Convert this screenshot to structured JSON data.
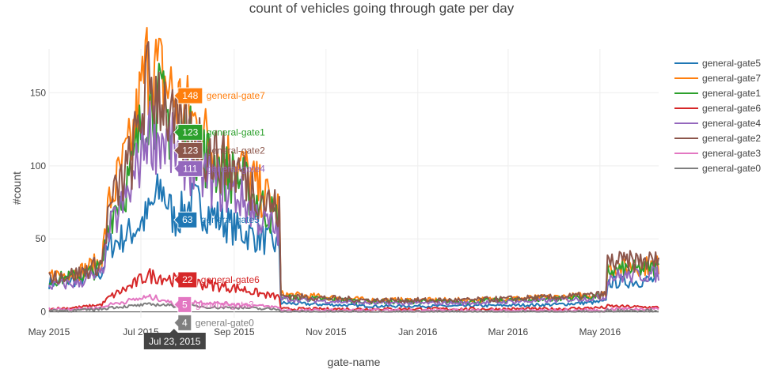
{
  "chart_data": {
    "type": "line",
    "title": "count of vehicles going through gate per day",
    "xlabel": "gate-name",
    "ylabel": "#count",
    "x_tick_labels": [
      "May 2015",
      "Jul 2015",
      "Sep 2015",
      "Nov 2015",
      "Jan 2016",
      "Mar 2016",
      "May 2016"
    ],
    "y_ticks": [
      0,
      50,
      100,
      150
    ],
    "ylim": [
      -4,
      180
    ],
    "xlim": [
      "2015-05-01",
      "2016-06-09"
    ],
    "grid": true,
    "legend_position": "right",
    "hover": {
      "date": "2015-07-23",
      "date_label": "Jul 23, 2015"
    },
    "series": [
      {
        "name": "general-gate5",
        "color": "#1f77b4",
        "hover_value": 63,
        "points": [
          [
            "2015-05-01",
            20
          ],
          [
            "2015-05-20",
            22
          ],
          [
            "2015-06-05",
            27
          ],
          [
            "2015-06-10",
            45
          ],
          [
            "2015-06-25",
            55
          ],
          [
            "2015-07-05",
            65
          ],
          [
            "2015-07-15",
            85
          ],
          [
            "2015-07-23",
            63
          ],
          [
            "2015-08-05",
            75
          ],
          [
            "2015-08-20",
            65
          ],
          [
            "2015-09-05",
            55
          ],
          [
            "2015-09-20",
            50
          ],
          [
            "2015-10-01",
            45
          ],
          [
            "2015-10-02",
            6
          ],
          [
            "2015-12-01",
            4
          ],
          [
            "2016-02-01",
            4
          ],
          [
            "2016-04-01",
            5
          ],
          [
            "2016-05-05",
            7
          ],
          [
            "2016-05-06",
            20
          ],
          [
            "2016-06-09",
            22
          ]
        ]
      },
      {
        "name": "general-gate7",
        "color": "#ff7f0e",
        "hover_value": 148,
        "points": [
          [
            "2015-05-01",
            25
          ],
          [
            "2015-05-20",
            27
          ],
          [
            "2015-06-05",
            35
          ],
          [
            "2015-06-10",
            75
          ],
          [
            "2015-06-25",
            115
          ],
          [
            "2015-07-05",
            170
          ],
          [
            "2015-07-15",
            160
          ],
          [
            "2015-07-23",
            148
          ],
          [
            "2015-08-05",
            130
          ],
          [
            "2015-08-20",
            110
          ],
          [
            "2015-09-05",
            100
          ],
          [
            "2015-09-20",
            80
          ],
          [
            "2015-10-01",
            70
          ],
          [
            "2015-10-02",
            12
          ],
          [
            "2015-12-01",
            8
          ],
          [
            "2016-02-01",
            8
          ],
          [
            "2016-04-01",
            10
          ],
          [
            "2016-05-05",
            12
          ],
          [
            "2016-05-06",
            30
          ],
          [
            "2016-06-09",
            32
          ]
        ]
      },
      {
        "name": "general-gate1",
        "color": "#2ca02c",
        "hover_value": 123,
        "points": [
          [
            "2015-05-01",
            22
          ],
          [
            "2015-05-20",
            24
          ],
          [
            "2015-06-05",
            30
          ],
          [
            "2015-06-10",
            65
          ],
          [
            "2015-06-25",
            95
          ],
          [
            "2015-07-05",
            145
          ],
          [
            "2015-07-15",
            140
          ],
          [
            "2015-07-23",
            123
          ],
          [
            "2015-08-05",
            115
          ],
          [
            "2015-08-20",
            100
          ],
          [
            "2015-09-05",
            90
          ],
          [
            "2015-09-20",
            72
          ],
          [
            "2015-10-01",
            62
          ],
          [
            "2015-10-02",
            10
          ],
          [
            "2015-12-01",
            7
          ],
          [
            "2016-02-01",
            7
          ],
          [
            "2016-04-01",
            9
          ],
          [
            "2016-05-05",
            11
          ],
          [
            "2016-05-06",
            28
          ],
          [
            "2016-06-09",
            30
          ]
        ]
      },
      {
        "name": "general-gate6",
        "color": "#d62728",
        "hover_value": 22,
        "points": [
          [
            "2015-05-01",
            2
          ],
          [
            "2015-05-20",
            3
          ],
          [
            "2015-06-05",
            5
          ],
          [
            "2015-06-10",
            10
          ],
          [
            "2015-06-25",
            18
          ],
          [
            "2015-07-05",
            25
          ],
          [
            "2015-07-15",
            24
          ],
          [
            "2015-07-23",
            22
          ],
          [
            "2015-08-05",
            20
          ],
          [
            "2015-08-20",
            18
          ],
          [
            "2015-09-05",
            16
          ],
          [
            "2015-09-20",
            12
          ],
          [
            "2015-10-01",
            10
          ],
          [
            "2015-10-02",
            2
          ],
          [
            "2015-12-01",
            2
          ],
          [
            "2016-02-01",
            2
          ],
          [
            "2016-04-01",
            2
          ],
          [
            "2016-05-05",
            3
          ],
          [
            "2016-05-06",
            4
          ],
          [
            "2016-06-09",
            3
          ]
        ]
      },
      {
        "name": "general-gate4",
        "color": "#9467bd",
        "hover_value": 111,
        "points": [
          [
            "2015-05-01",
            18
          ],
          [
            "2015-05-20",
            20
          ],
          [
            "2015-06-05",
            26
          ],
          [
            "2015-06-10",
            55
          ],
          [
            "2015-06-25",
            85
          ],
          [
            "2015-07-05",
            125
          ],
          [
            "2015-07-15",
            118
          ],
          [
            "2015-07-23",
            111
          ],
          [
            "2015-08-05",
            100
          ],
          [
            "2015-08-20",
            88
          ],
          [
            "2015-09-05",
            78
          ],
          [
            "2015-09-20",
            62
          ],
          [
            "2015-10-01",
            55
          ],
          [
            "2015-10-02",
            9
          ],
          [
            "2015-12-01",
            6
          ],
          [
            "2016-02-01",
            6
          ],
          [
            "2016-04-01",
            8
          ],
          [
            "2016-05-05",
            10
          ],
          [
            "2016-05-06",
            24
          ],
          [
            "2016-06-09",
            26
          ]
        ]
      },
      {
        "name": "general-gate2",
        "color": "#8c564b",
        "hover_value": 123,
        "points": [
          [
            "2015-05-01",
            24
          ],
          [
            "2015-05-20",
            26
          ],
          [
            "2015-06-05",
            33
          ],
          [
            "2015-06-10",
            70
          ],
          [
            "2015-06-25",
            105
          ],
          [
            "2015-07-05",
            155
          ],
          [
            "2015-07-15",
            150
          ],
          [
            "2015-07-23",
            123
          ],
          [
            "2015-08-05",
            120
          ],
          [
            "2015-08-20",
            105
          ],
          [
            "2015-09-05",
            95
          ],
          [
            "2015-09-20",
            78
          ],
          [
            "2015-10-01",
            68
          ],
          [
            "2015-10-02",
            11
          ],
          [
            "2015-12-01",
            8
          ],
          [
            "2016-02-01",
            8
          ],
          [
            "2016-04-01",
            10
          ],
          [
            "2016-05-05",
            12
          ],
          [
            "2016-05-06",
            34
          ],
          [
            "2016-06-09",
            35
          ]
        ]
      },
      {
        "name": "general-gate3",
        "color": "#e377c2",
        "hover_value": 5,
        "points": [
          [
            "2015-05-01",
            2
          ],
          [
            "2015-05-20",
            2
          ],
          [
            "2015-06-05",
            3
          ],
          [
            "2015-06-10",
            5
          ],
          [
            "2015-06-25",
            8
          ],
          [
            "2015-07-05",
            10
          ],
          [
            "2015-07-15",
            9
          ],
          [
            "2015-07-23",
            5
          ],
          [
            "2015-08-05",
            7
          ],
          [
            "2015-08-20",
            6
          ],
          [
            "2015-09-05",
            5
          ],
          [
            "2015-09-20",
            4
          ],
          [
            "2015-10-01",
            3
          ],
          [
            "2015-10-02",
            1
          ],
          [
            "2015-12-01",
            1
          ],
          [
            "2016-02-01",
            1
          ],
          [
            "2016-04-01",
            1
          ],
          [
            "2016-05-05",
            1
          ],
          [
            "2016-05-06",
            2
          ],
          [
            "2016-06-09",
            2
          ]
        ]
      },
      {
        "name": "general-gate0",
        "color": "#7f7f7f",
        "hover_value": 4,
        "points": [
          [
            "2015-05-01",
            1
          ],
          [
            "2015-05-20",
            1
          ],
          [
            "2015-06-05",
            2
          ],
          [
            "2015-06-10",
            3
          ],
          [
            "2015-06-25",
            4
          ],
          [
            "2015-07-05",
            5
          ],
          [
            "2015-07-15",
            5
          ],
          [
            "2015-07-23",
            4
          ],
          [
            "2015-08-05",
            4
          ],
          [
            "2015-08-20",
            3
          ],
          [
            "2015-09-05",
            3
          ],
          [
            "2015-09-20",
            2
          ],
          [
            "2015-10-01",
            2
          ],
          [
            "2015-10-02",
            0
          ],
          [
            "2015-12-01",
            0
          ],
          [
            "2016-02-01",
            0
          ],
          [
            "2016-04-01",
            0
          ],
          [
            "2016-05-05",
            0
          ],
          [
            "2016-05-06",
            1
          ],
          [
            "2016-06-09",
            1
          ]
        ]
      }
    ]
  }
}
